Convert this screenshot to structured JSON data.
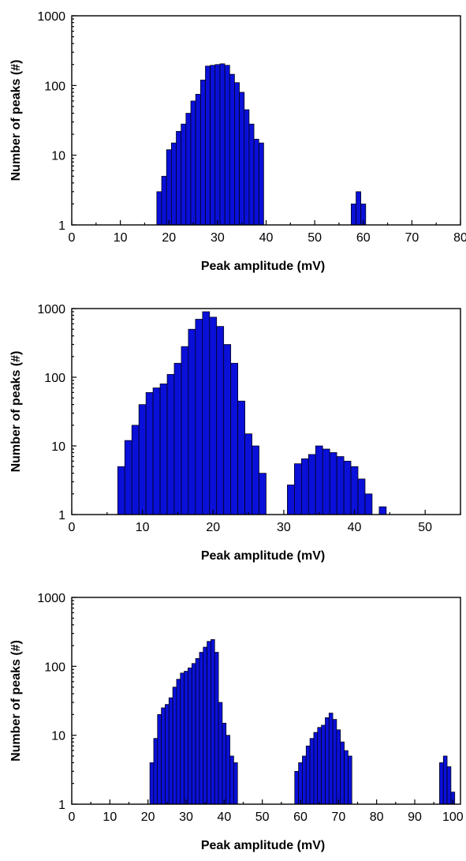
{
  "colors": {
    "bar_fill": "#0a10d8",
    "bar_stroke": "#000000"
  },
  "chart_data": [
    {
      "type": "bar",
      "xlabel": "Peak amplitude (mV)",
      "ylabel": "Number of peaks (#)",
      "yscale": "log",
      "ylim": [
        1,
        1000
      ],
      "xlim": [
        0,
        80
      ],
      "xticks": [
        0,
        10,
        20,
        30,
        40,
        50,
        60,
        70,
        80
      ],
      "yticks": [
        1,
        10,
        100,
        1000
      ],
      "bin_width": 1,
      "x": [
        18,
        19,
        20,
        21,
        22,
        23,
        24,
        25,
        26,
        27,
        28,
        29,
        30,
        31,
        32,
        33,
        34,
        35,
        36,
        37,
        38,
        39,
        58,
        59,
        60
      ],
      "values": [
        3,
        5,
        12,
        15,
        22,
        28,
        40,
        60,
        75,
        120,
        190,
        195,
        200,
        205,
        195,
        145,
        110,
        80,
        45,
        28,
        17,
        15,
        2,
        3,
        2
      ]
    },
    {
      "type": "bar",
      "xlabel": "Peak amplitude (mV)",
      "ylabel": "Number of peaks (#)",
      "yscale": "log",
      "ylim": [
        1,
        1000
      ],
      "xlim": [
        0,
        55
      ],
      "xticks": [
        0,
        10,
        20,
        30,
        40,
        50
      ],
      "yticks": [
        1,
        10,
        100,
        1000
      ],
      "bin_width": 1,
      "x": [
        7,
        8,
        9,
        10,
        11,
        12,
        13,
        14,
        15,
        16,
        17,
        18,
        19,
        20,
        21,
        22,
        23,
        24,
        25,
        26,
        27,
        31,
        32,
        33,
        34,
        35,
        36,
        37,
        38,
        39,
        40,
        41,
        42,
        44
      ],
      "values": [
        5,
        12,
        20,
        40,
        60,
        70,
        80,
        110,
        160,
        280,
        500,
        700,
        900,
        750,
        550,
        300,
        160,
        45,
        15,
        10,
        4,
        2.7,
        5.5,
        6.5,
        7.5,
        10,
        9,
        8,
        7,
        6,
        5,
        3.3,
        2,
        1.3
      ]
    },
    {
      "type": "bar",
      "xlabel": "Peak amplitude (mV)",
      "ylabel": "Number of peaks (#)",
      "yscale": "log",
      "ylim": [
        1,
        1000
      ],
      "xlim": [
        0,
        102
      ],
      "xticks": [
        0,
        10,
        20,
        30,
        40,
        50,
        60,
        70,
        80,
        90,
        100
      ],
      "yticks": [
        1,
        10,
        100,
        1000
      ],
      "bin_width": 1,
      "x": [
        21,
        22,
        23,
        24,
        25,
        26,
        27,
        28,
        29,
        30,
        31,
        32,
        33,
        34,
        35,
        36,
        37,
        38,
        39,
        40,
        41,
        42,
        43,
        59,
        60,
        61,
        62,
        63,
        64,
        65,
        66,
        67,
        68,
        69,
        70,
        71,
        72,
        73,
        97,
        98,
        99,
        100
      ],
      "values": [
        4,
        9,
        20,
        25,
        28,
        35,
        50,
        65,
        80,
        85,
        95,
        110,
        130,
        160,
        190,
        230,
        245,
        160,
        30,
        15,
        10,
        5,
        4,
        3,
        4,
        5,
        7,
        9,
        11,
        13,
        14,
        18,
        21,
        17,
        12,
        8,
        6,
        5,
        4,
        5,
        3.5,
        1.5
      ]
    }
  ]
}
